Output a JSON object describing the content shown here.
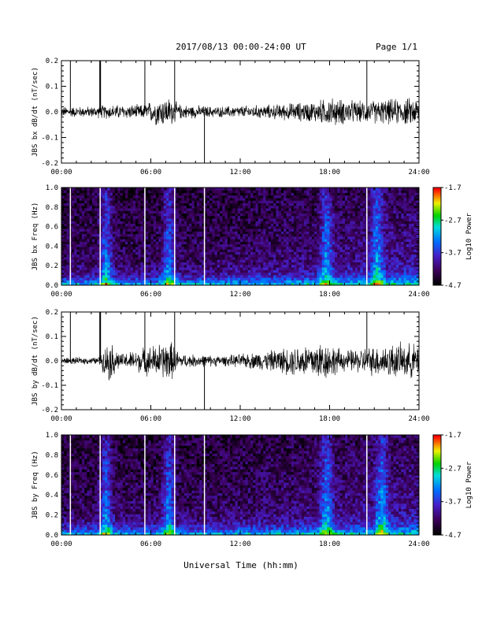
{
  "header": {
    "title": "2017/08/13  00:00-24:00 UT",
    "page": "Page 1/1"
  },
  "footer": {
    "xlabel": "Universal Time (hh:mm)"
  },
  "chart_data": [
    {
      "type": "line",
      "ylabel": "JBS bx dB/dt (nT/sec)",
      "xlim": [
        0,
        24
      ],
      "ylim": [
        -0.2,
        0.2
      ],
      "xticks": [
        "00:00",
        "06:00",
        "12:00",
        "18:00",
        "24:00"
      ],
      "yticks": [
        "-0.2",
        "-0.1",
        "0.0",
        "0.1",
        "0.2"
      ],
      "spikes_hours": [
        0.6,
        2.6,
        5.6,
        7.6,
        9.6,
        20.5
      ],
      "noise_envelope": [
        {
          "x": 0,
          "amp": 0.015
        },
        {
          "x": 2.0,
          "amp": 0.015
        },
        {
          "x": 3.0,
          "amp": 0.02
        },
        {
          "x": 5.5,
          "amp": 0.02
        },
        {
          "x": 6.5,
          "amp": 0.04
        },
        {
          "x": 7.3,
          "amp": 0.04
        },
        {
          "x": 8.0,
          "amp": 0.02
        },
        {
          "x": 10.5,
          "amp": 0.015
        },
        {
          "x": 14.0,
          "amp": 0.02
        },
        {
          "x": 17.0,
          "amp": 0.03
        },
        {
          "x": 18.0,
          "amp": 0.04
        },
        {
          "x": 20.0,
          "amp": 0.03
        },
        {
          "x": 24.0,
          "amp": 0.04
        }
      ]
    },
    {
      "type": "heatmap",
      "ylabel": "JBS bx Freq (Hz)",
      "xlim": [
        0,
        24
      ],
      "ylim": [
        0.0,
        1.0
      ],
      "xticks": [
        "00:00",
        "06:00",
        "12:00",
        "18:00",
        "24:00"
      ],
      "yticks": [
        "0.0",
        "0.2",
        "0.4",
        "0.6",
        "0.8",
        "1.0"
      ],
      "colorbar": {
        "label": "Log10 Power",
        "ticks": [
          "-1.7",
          "-2.7",
          "-3.7",
          "-4.7"
        ],
        "range": [
          -4.7,
          -1.7
        ]
      },
      "gaps_hours": [
        0.6,
        2.6,
        5.6,
        7.6,
        9.6,
        20.5
      ],
      "bright_bands_hours": [
        3.0,
        7.2,
        17.8,
        21.2
      ]
    },
    {
      "type": "line",
      "ylabel": "JBS by dB/dt (nT/sec)",
      "xlim": [
        0,
        24
      ],
      "ylim": [
        -0.2,
        0.2
      ],
      "xticks": [
        "00:00",
        "06:00",
        "12:00",
        "18:00",
        "24:00"
      ],
      "yticks": [
        "-0.2",
        "-0.1",
        "0.0",
        "0.1",
        "0.2"
      ],
      "spikes_hours": [
        0.6,
        2.6,
        5.6,
        7.6,
        9.6,
        20.5
      ],
      "noise_envelope": [
        {
          "x": 0,
          "amp": 0.01
        },
        {
          "x": 2.5,
          "amp": 0.01
        },
        {
          "x": 3.2,
          "amp": 0.06
        },
        {
          "x": 4.0,
          "amp": 0.02
        },
        {
          "x": 6.5,
          "amp": 0.05
        },
        {
          "x": 7.3,
          "amp": 0.06
        },
        {
          "x": 8.0,
          "amp": 0.02
        },
        {
          "x": 11.0,
          "amp": 0.015
        },
        {
          "x": 14.0,
          "amp": 0.03
        },
        {
          "x": 17.5,
          "amp": 0.06
        },
        {
          "x": 19.0,
          "amp": 0.03
        },
        {
          "x": 22.0,
          "amp": 0.05
        },
        {
          "x": 24.0,
          "amp": 0.05
        }
      ]
    },
    {
      "type": "heatmap",
      "ylabel": "JBS by Freq (Hz)",
      "xlim": [
        0,
        24
      ],
      "ylim": [
        0.0,
        1.0
      ],
      "xticks": [
        "00:00",
        "06:00",
        "12:00",
        "18:00",
        "24:00"
      ],
      "yticks": [
        "0.0",
        "0.2",
        "0.4",
        "0.6",
        "0.8",
        "1.0"
      ],
      "colorbar": {
        "label": "Log10 Power",
        "ticks": [
          "-1.7",
          "-2.7",
          "-3.7",
          "-4.7"
        ],
        "range": [
          -4.7,
          -1.7
        ]
      },
      "gaps_hours": [
        0.6,
        2.6,
        5.6,
        7.6,
        9.6,
        20.5
      ],
      "bright_bands_hours": [
        3.0,
        7.2,
        17.8,
        21.5
      ]
    }
  ]
}
